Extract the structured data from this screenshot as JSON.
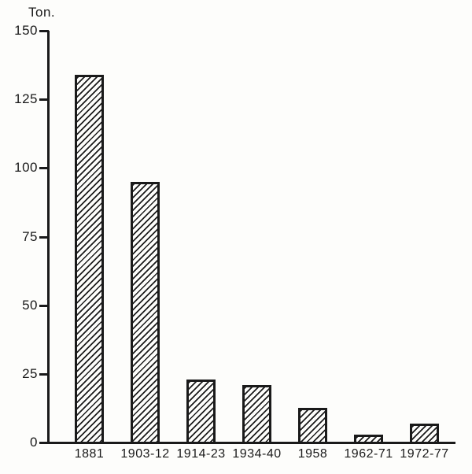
{
  "figure": {
    "background_color": "#fdfdfb",
    "ink_color": "#1a1a1a"
  },
  "chart_data": {
    "type": "bar",
    "title": "",
    "ylabel": "Ton.",
    "xlabel": "",
    "categories": [
      "1881",
      "1903-12",
      "1914-23",
      "1934-40",
      "1958",
      "1962-71",
      "1972-77"
    ],
    "values": [
      134,
      95,
      23,
      21,
      12.5,
      3,
      7
    ],
    "ylim": [
      0,
      150
    ],
    "yticks": [
      0,
      25,
      50,
      75,
      100,
      125,
      150
    ],
    "grid": false,
    "legend": false,
    "bar_fill": "diagonal-hatch",
    "hatch_direction": "/"
  }
}
